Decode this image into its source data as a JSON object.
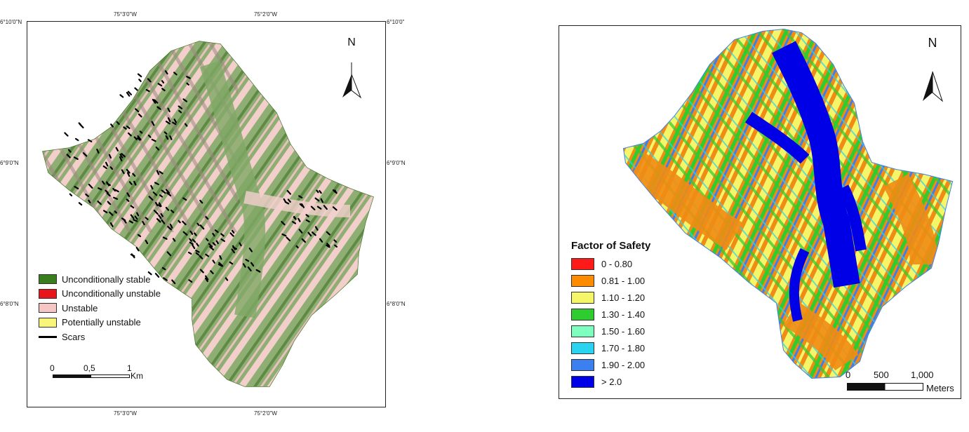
{
  "left_map": {
    "coords": {
      "top_left_lon": "75°3'0\"W",
      "top_right_lon": "75°2'0\"W",
      "bottom_left_lon": "75°3'0\"W",
      "bottom_right_lon": "75°2'0\"W",
      "lat_10_left": "6°10'0\"N",
      "lat_9_left": "6°9'0\"N",
      "lat_8_left": "6°8'0\"N",
      "lat_10_right": "6°10'0\"",
      "lat_9_right": "6°9'0\"N",
      "lat_8_right": "6°8'0\"N"
    },
    "north_label": "N",
    "legend": [
      {
        "label": "Unconditionally stable",
        "color": "#3a7d1e"
      },
      {
        "label": "Unconditionally unstable",
        "color": "#e8141b"
      },
      {
        "label": "Unstable",
        "color": "#f6c6c4"
      },
      {
        "label": "Potentially unstable",
        "color": "#f8f57a"
      }
    ],
    "scars_label": "Scars",
    "scale": {
      "t0": "0",
      "t1": "0,5",
      "t2": "1",
      "unit": "Km"
    }
  },
  "right_map": {
    "north_label": "N",
    "legend_title": "Factor of Safety",
    "classes": [
      {
        "label": "0 - 0.80",
        "color": "#ff1a1a"
      },
      {
        "label": "0.81 - 1.00",
        "color": "#ff8c00"
      },
      {
        "label": "1.10 - 1.20",
        "color": "#f5f56a"
      },
      {
        "label": "1.30 - 1.40",
        "color": "#2ecc2e"
      },
      {
        "label": "1.50 - 1.60",
        "color": "#7fffbf"
      },
      {
        "label": "1.70 - 1.80",
        "color": "#2ad4f0"
      },
      {
        "label": "1.90 - 2.00",
        "color": "#3b7ff0"
      },
      {
        "label": "> 2.0",
        "color": "#0000e6"
      }
    ],
    "scale": {
      "t0": "0",
      "t1": "500",
      "t2": "1,000",
      "unit": "Meters"
    }
  }
}
